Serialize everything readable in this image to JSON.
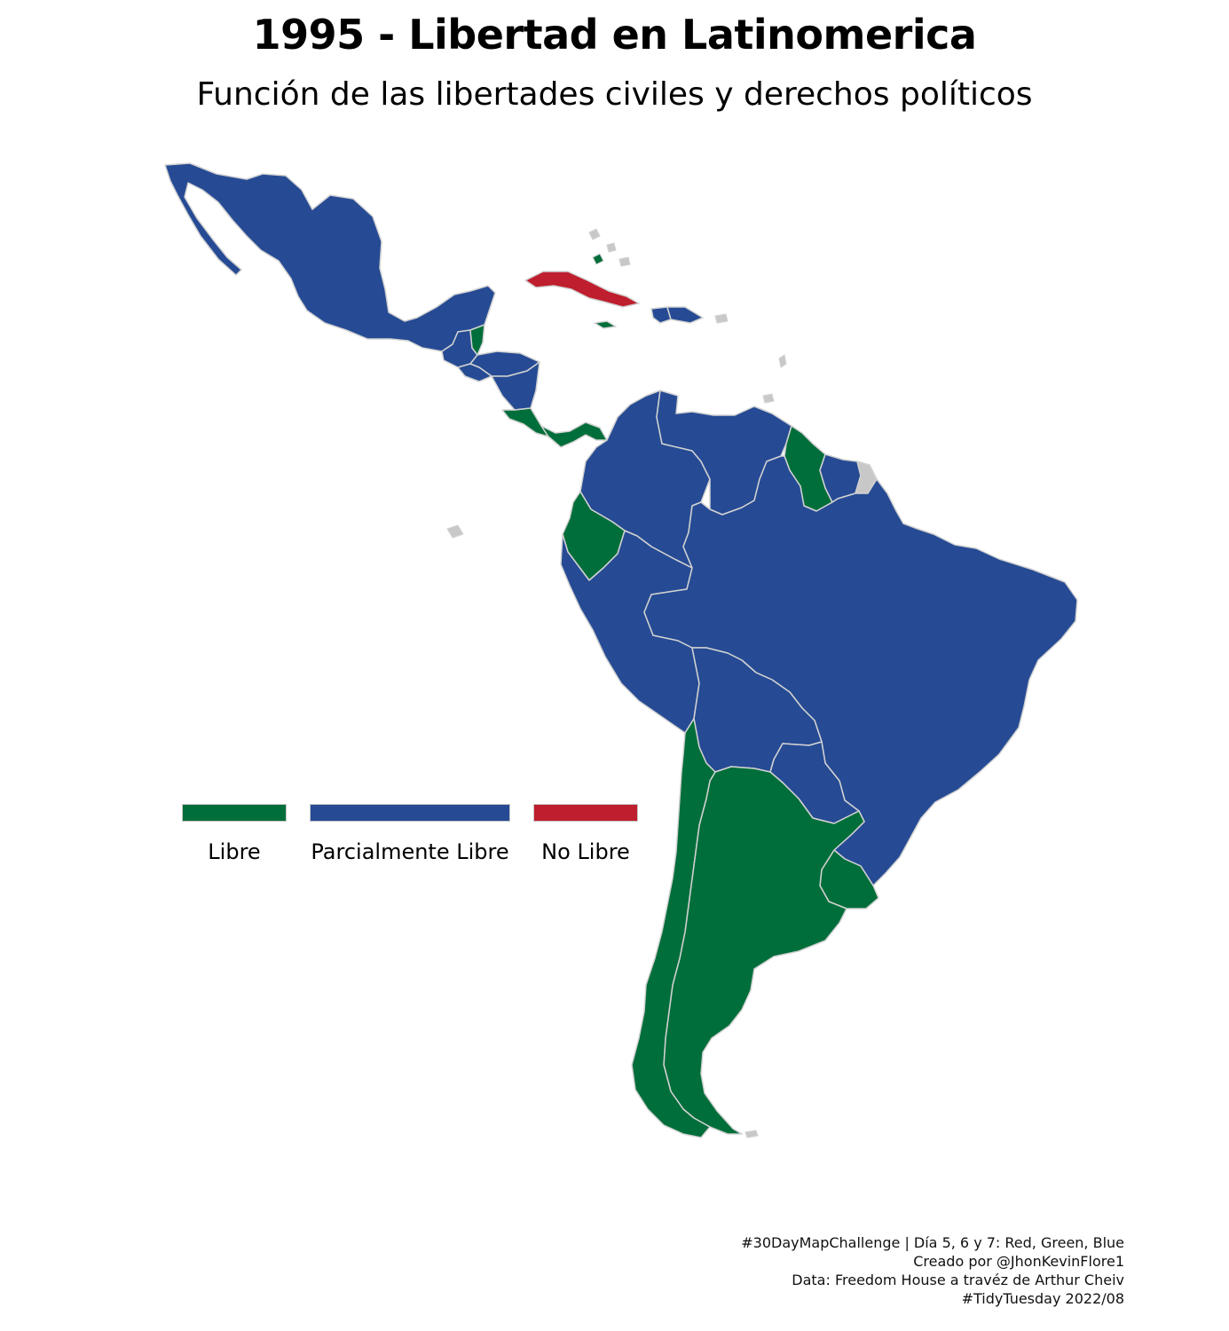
{
  "title": "1995 - Libertad en Latinomerica",
  "subtitle": "Función de las libertades civiles y derechos políticos",
  "colors": {
    "libre": "#006e3a",
    "parcialmente_libre": "#264b94",
    "no_libre": "#be1e2d",
    "border": "#d2d2d2",
    "no_data": "#c8c8c8"
  },
  "legend": {
    "items": [
      {
        "label": "Libre",
        "color": "#006e3a"
      },
      {
        "label": "Parcialmente Libre",
        "color": "#264b94"
      },
      {
        "label": "No Libre",
        "color": "#be1e2d"
      }
    ]
  },
  "caption": {
    "lines": [
      "#30DayMapChallenge | Día 5, 6 y 7: Red, Green, Blue",
      "Creado por @JhonKevinFlore1",
      "Data: Freedom House a travéz de Arthur Cheiv",
      "#TidyTuesday 2022/08"
    ]
  },
  "countries": [
    {
      "name": "Mexico",
      "status": "Parcialmente Libre"
    },
    {
      "name": "Guatemala",
      "status": "Parcialmente Libre"
    },
    {
      "name": "Belize",
      "status": "Libre"
    },
    {
      "name": "Honduras",
      "status": "Parcialmente Libre"
    },
    {
      "name": "El Salvador",
      "status": "Parcialmente Libre"
    },
    {
      "name": "Nicaragua",
      "status": "Parcialmente Libre"
    },
    {
      "name": "Costa Rica",
      "status": "Libre"
    },
    {
      "name": "Panama",
      "status": "Libre"
    },
    {
      "name": "Cuba",
      "status": "No Libre"
    },
    {
      "name": "Jamaica",
      "status": "Libre"
    },
    {
      "name": "Dominican Republic",
      "status": "Parcialmente Libre"
    },
    {
      "name": "Haiti",
      "status": "Parcialmente Libre"
    },
    {
      "name": "Colombia",
      "status": "Parcialmente Libre"
    },
    {
      "name": "Venezuela",
      "status": "Parcialmente Libre"
    },
    {
      "name": "Guyana",
      "status": "Libre"
    },
    {
      "name": "Suriname",
      "status": "Parcialmente Libre"
    },
    {
      "name": "Ecuador",
      "status": "Libre"
    },
    {
      "name": "Peru",
      "status": "Parcialmente Libre"
    },
    {
      "name": "Brazil",
      "status": "Parcialmente Libre"
    },
    {
      "name": "Bolivia",
      "status": "Parcialmente Libre"
    },
    {
      "name": "Paraguay",
      "status": "Parcialmente Libre"
    },
    {
      "name": "Chile",
      "status": "Libre"
    },
    {
      "name": "Argentina",
      "status": "Libre"
    },
    {
      "name": "Uruguay",
      "status": "Libre"
    }
  ]
}
